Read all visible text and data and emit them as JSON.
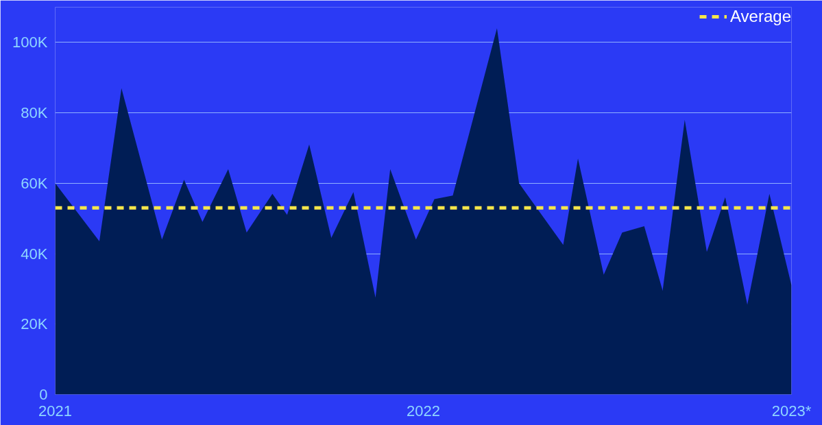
{
  "chart_data": {
    "type": "area",
    "x": [
      2021.0,
      2021.12,
      2021.18,
      2021.29,
      2021.35,
      2021.4,
      2021.47,
      2021.52,
      2021.59,
      2021.63,
      2021.69,
      2021.75,
      2021.81,
      2021.87,
      2021.91,
      2021.98,
      2022.03,
      2022.08,
      2022.2,
      2022.26,
      2022.38,
      2022.42,
      2022.49,
      2022.54,
      2022.6,
      2022.65,
      2022.71,
      2022.77,
      2022.82,
      2022.88,
      2022.94,
      2023.0
    ],
    "series": [
      {
        "color": "#001d55",
        "values": [
          60000,
          43500,
          87000,
          44000,
          61000,
          49000,
          64000,
          46000,
          57000,
          51000,
          71000,
          44500,
          57500,
          27500,
          64000,
          44000,
          55500,
          56500,
          104000,
          60000,
          42500,
          67000,
          34000,
          46000,
          47800,
          29500,
          78000,
          40500,
          56000,
          25500,
          57000,
          31000
        ]
      }
    ],
    "xlim": [
      2021.0,
      2023.0
    ],
    "xticks": [
      2021,
      2022,
      {
        "value": 2023,
        "label": "2023*"
      }
    ],
    "ylim": [
      0,
      110000
    ],
    "yticks": [
      {
        "value": 0,
        "label": "0"
      },
      {
        "value": 20000,
        "label": "20K"
      },
      {
        "value": 40000,
        "label": "40K"
      },
      {
        "value": 60000,
        "label": "60K"
      },
      {
        "value": 80000,
        "label": "80K"
      },
      {
        "value": 100000,
        "label": "100K"
      }
    ],
    "grid": "y",
    "ref_lines": [
      {
        "axis": "y",
        "value": 53000,
        "label": "Average",
        "color": "#f5e64a",
        "line_style": "dashed"
      }
    ],
    "legend": "top right"
  }
}
